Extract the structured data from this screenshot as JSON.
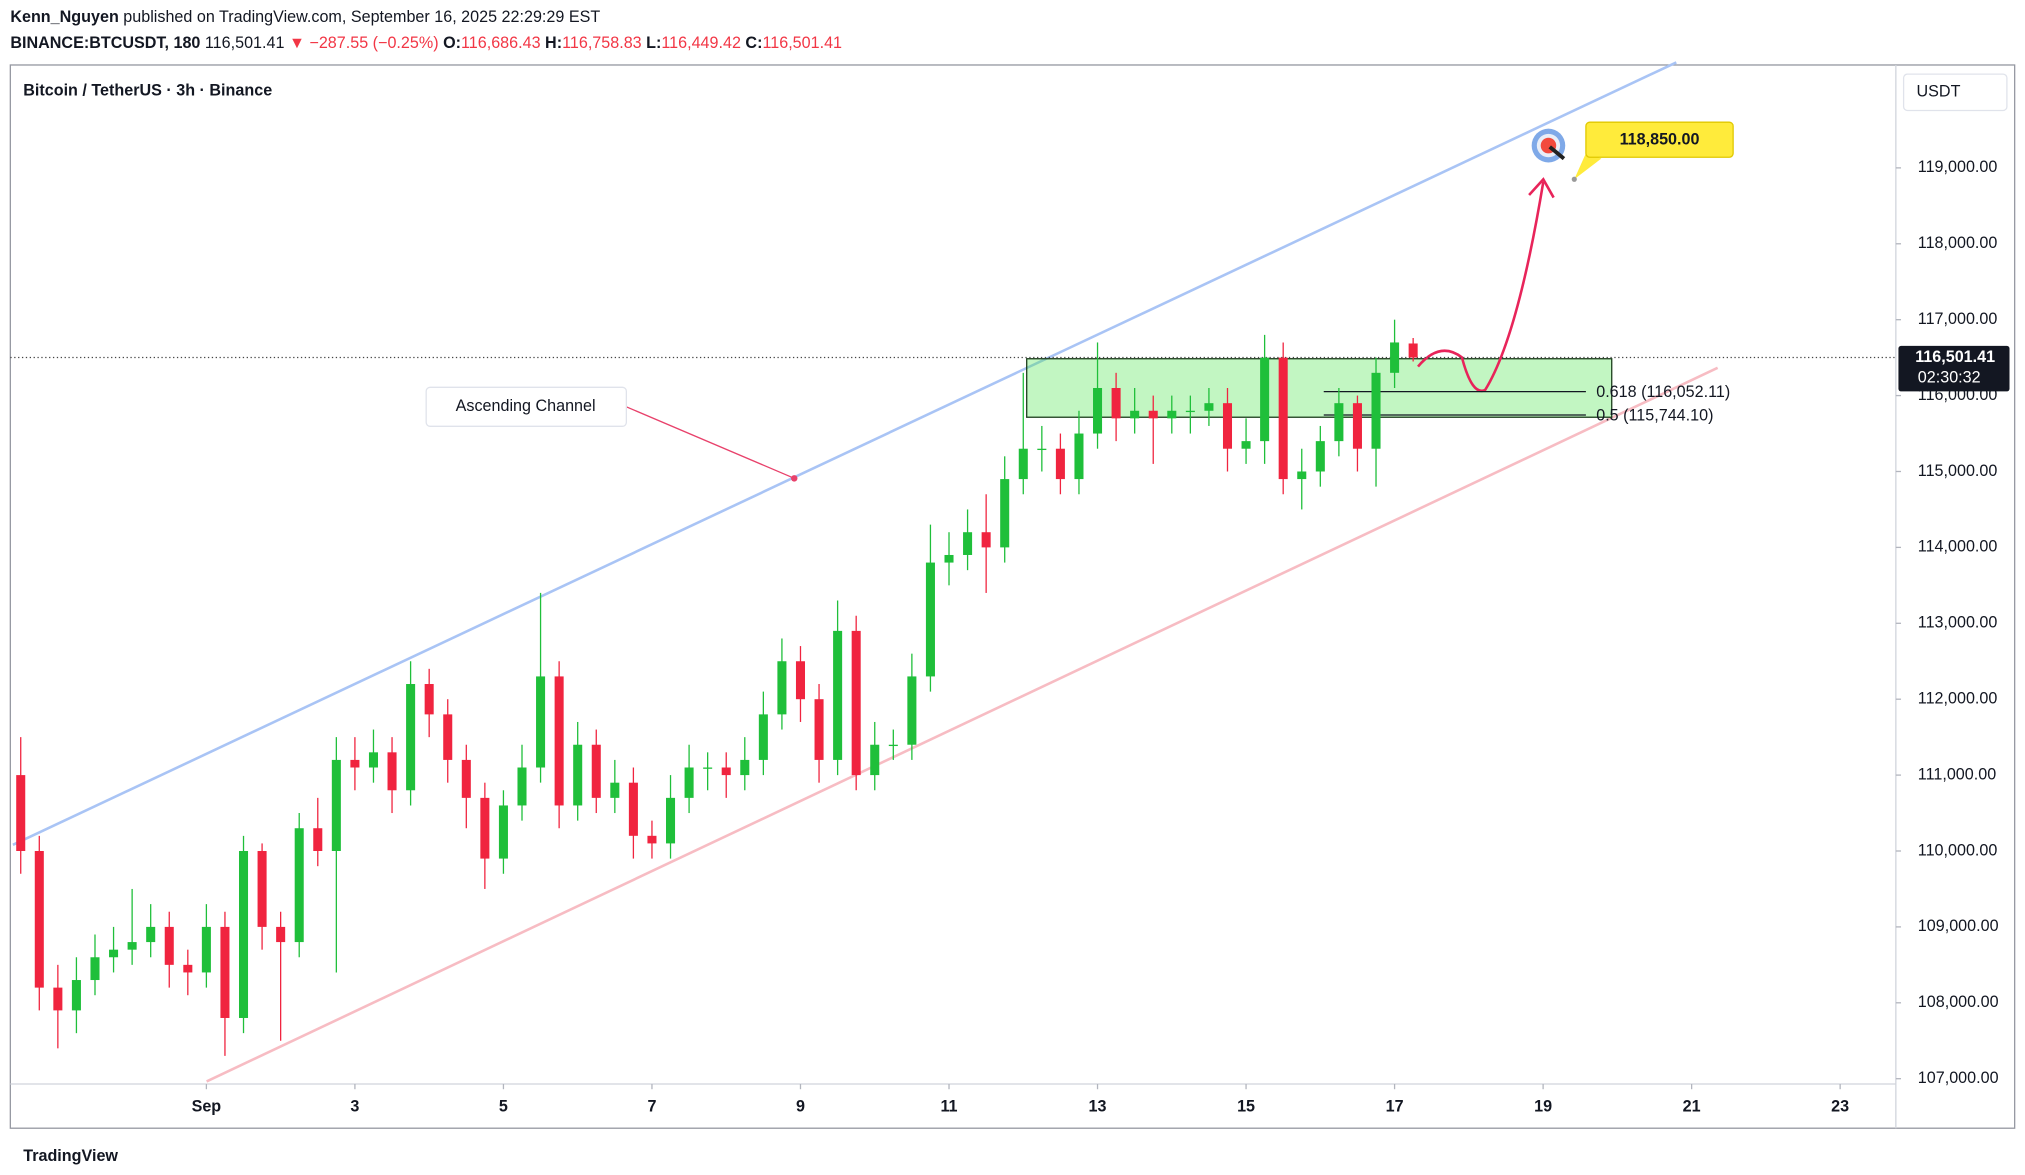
{
  "header": {
    "author": "Kenn_Nguyen",
    "published": "published on TradingView.com, September 16, 2025 22:29:29 EST",
    "symbol": "BINANCE:BTCUSDT, 180",
    "last": "116,501.41",
    "change": "▼ −287.55 (−0.25%)",
    "o_label": "O:",
    "o": "116,686.43",
    "h_label": "H:",
    "h": "116,758.83",
    "l_label": "L:",
    "l": "116,449.42",
    "c_label": "C:",
    "c": "116,501.41"
  },
  "chart_data": {
    "type": "candlestick",
    "title": "Bitcoin / TetherUS · 3h · Binance",
    "y_unit": "USDT",
    "x": [
      -1.5,
      -1.25,
      -1,
      -0.75,
      -0.5,
      -0.25,
      0,
      0.25,
      0.5,
      0.75,
      1,
      1.25,
      1.5,
      1.75,
      2,
      2.25,
      2.5,
      2.75,
      3,
      3.25,
      3.5,
      3.75,
      4,
      4.25,
      4.5,
      4.75,
      5,
      5.25,
      5.5,
      5.75,
      6,
      6.25,
      6.5,
      6.75,
      7,
      7.25,
      7.5,
      7.75,
      8,
      8.25,
      8.5,
      8.75,
      9,
      9.25,
      9.5,
      9.75,
      10,
      10.25,
      10.5,
      10.75,
      11,
      11.25,
      11.5,
      11.75,
      12,
      12.25,
      12.5,
      12.75,
      13,
      13.25,
      13.5,
      13.75,
      14,
      14.25,
      14.5,
      14.75,
      15,
      15.25,
      15.5,
      15.75,
      16,
      16.25,
      16.5,
      16.75,
      17,
      17.25
    ],
    "open": [
      111000,
      110000,
      108200,
      107900,
      108300,
      108600,
      108700,
      108800,
      109000,
      108500,
      108400,
      109000,
      107800,
      110000,
      109000,
      108800,
      110300,
      110000,
      111200,
      111100,
      111300,
      110800,
      112200,
      111800,
      111200,
      110700,
      109900,
      110600,
      111100,
      112300,
      110600,
      111400,
      110700,
      110900,
      110200,
      110100,
      110700,
      111100,
      111100,
      111000,
      111200,
      111800,
      112500,
      112000,
      111200,
      112900,
      111000,
      111400,
      111400,
      112300,
      113800,
      113900,
      114200,
      114000,
      114900,
      115300,
      115300,
      114900,
      115500,
      116100,
      115700,
      115800,
      115700,
      115800,
      115800,
      115900,
      115300,
      115400,
      116500,
      114900,
      115000,
      115400,
      115900,
      115300,
      116300,
      116686.43
    ],
    "high": [
      111500,
      110200,
      108500,
      108600,
      108900,
      109000,
      109500,
      109300,
      109200,
      108700,
      109300,
      109200,
      110200,
      110100,
      109200,
      110500,
      110700,
      111500,
      111500,
      111600,
      111500,
      112500,
      112400,
      112000,
      111400,
      110900,
      110800,
      111400,
      113400,
      112500,
      111700,
      111600,
      111200,
      111100,
      110400,
      111000,
      111400,
      111300,
      111300,
      111500,
      112100,
      112800,
      112700,
      112200,
      113300,
      113100,
      111700,
      111600,
      112600,
      114300,
      114200,
      114500,
      114700,
      115200,
      116300,
      115600,
      115500,
      115800,
      116700,
      116300,
      116100,
      116000,
      116000,
      116000,
      116100,
      116100,
      115700,
      116800,
      116700,
      115300,
      115600,
      116100,
      116000,
      116500,
      117000,
      116758.83
    ],
    "low": [
      109700,
      107900,
      107400,
      107600,
      108100,
      108400,
      108500,
      108600,
      108200,
      108100,
      108200,
      107300,
      107600,
      108700,
      107500,
      108600,
      109800,
      108400,
      110800,
      110900,
      110500,
      110600,
      111500,
      110900,
      110300,
      109500,
      109700,
      110400,
      110900,
      110300,
      110400,
      110500,
      110500,
      109900,
      109900,
      109900,
      110500,
      110800,
      110700,
      110800,
      111000,
      111600,
      111700,
      110900,
      111000,
      110800,
      110800,
      111200,
      111200,
      112100,
      113500,
      113700,
      113400,
      113800,
      114700,
      115000,
      114700,
      114700,
      115300,
      115400,
      115500,
      115100,
      115500,
      115500,
      115600,
      115000,
      115100,
      115100,
      114700,
      114500,
      114800,
      115200,
      115000,
      114800,
      116100,
      116449.42
    ],
    "close": [
      110000,
      108200,
      107900,
      108300,
      108600,
      108700,
      108800,
      109000,
      108500,
      108400,
      109000,
      107800,
      110000,
      109000,
      108800,
      110300,
      110000,
      111200,
      111100,
      111300,
      110800,
      112200,
      111800,
      111200,
      110700,
      109900,
      110600,
      111100,
      112300,
      110600,
      111400,
      110700,
      110900,
      110200,
      110100,
      110700,
      111100,
      111100,
      111000,
      111200,
      111800,
      112500,
      112000,
      111200,
      112900,
      111000,
      111400,
      111400,
      112300,
      113800,
      113900,
      114200,
      114000,
      114900,
      115300,
      115300,
      114900,
      115500,
      116100,
      115700,
      115800,
      115700,
      115800,
      115800,
      115900,
      115300,
      115400,
      116500,
      114900,
      115000,
      115400,
      115900,
      115300,
      116300,
      116700,
      116501.41
    ],
    "up_color": "#1fbf3a",
    "down_color": "#f0243f",
    "xlim": [
      -1.64,
      23.75
    ],
    "xticks": [
      {
        "value": 1,
        "label": "Sep"
      },
      3,
      5,
      7,
      9,
      11,
      13,
      15,
      17,
      19,
      21,
      23
    ],
    "ylim": [
      106930,
      120270
    ],
    "yticks": [
      {
        "value": 107000,
        "label": "107,000.00"
      },
      {
        "value": 108000,
        "label": "108,000.00"
      },
      {
        "value": 109000,
        "label": "109,000.00"
      },
      {
        "value": 110000,
        "label": "110,000.00"
      },
      {
        "value": 111000,
        "label": "111,000.00"
      },
      {
        "value": 112000,
        "label": "112,000.00"
      },
      {
        "value": 113000,
        "label": "113,000.00"
      },
      {
        "value": 114000,
        "label": "114,000.00"
      },
      {
        "value": 115000,
        "label": "115,000.00"
      },
      {
        "value": 116000,
        "label": "116,000.00"
      },
      {
        "value": 117000,
        "label": "117,000.00"
      },
      {
        "value": 118000,
        "label": "118,000.00"
      },
      {
        "value": 119000,
        "label": "119,000.00"
      }
    ],
    "last_price": {
      "value": 116501.41,
      "label": "116,501.41",
      "countdown": "02:30:32"
    },
    "fib_levels": [
      {
        "value": 116052.11,
        "label": "0.618 (116,052.11)"
      },
      {
        "value": 115744.1,
        "label": "0.5 (115,744.10)"
      }
    ],
    "target": {
      "value": 118850,
      "label": "118,850.00"
    },
    "annotation": "Ascending Channel"
  },
  "footer": {
    "brand": "TradingView"
  }
}
